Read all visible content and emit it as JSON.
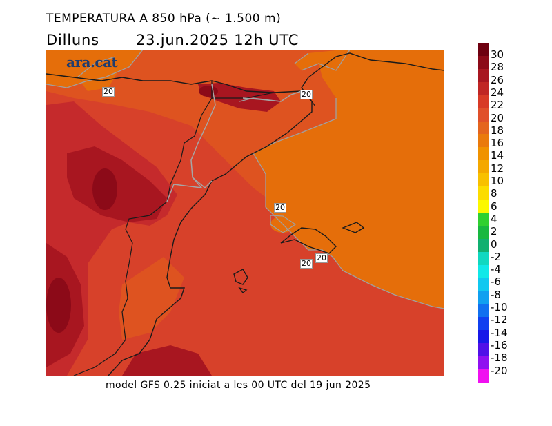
{
  "header": {
    "title": "TEMPERATURA A 850 hPa (~ 1.500 m)",
    "day": "Dilluns",
    "datetime": "23.jun.2025  12h  UTC"
  },
  "footer": {
    "model_note": "model GFS 0.25 iniciat a les 00 UTC del 19 jun 2025"
  },
  "logo": {
    "text": "ara.cat"
  },
  "contour_labels": [
    "20",
    "20",
    "20",
    "20",
    "20"
  ],
  "colorbar": {
    "ticks": [
      "30",
      "28",
      "26",
      "24",
      "22",
      "20",
      "18",
      "16",
      "14",
      "12",
      "10",
      "8",
      "6",
      "4",
      "2",
      "0",
      "-2",
      "-4",
      "-6",
      "-8",
      "-10",
      "-12",
      "-14",
      "-16",
      "-18",
      "-20"
    ],
    "colors": [
      "#6e0010",
      "#8c0a18",
      "#a81620",
      "#c02624",
      "#d83a26",
      "#e0502a",
      "#e4651e",
      "#ea7a0c",
      "#f09200",
      "#f4a800",
      "#f8c000",
      "#fcdc00",
      "#fcf800",
      "#30d030",
      "#18b840",
      "#10b070",
      "#10d8c0",
      "#10e8e8",
      "#10c8f0",
      "#10a0f0",
      "#1070f0",
      "#1040f0",
      "#1818e8",
      "#5010e8",
      "#9010f0",
      "#f010f0"
    ]
  },
  "field_colors": {
    "t16_18": "#e56e0a",
    "t18_20": "#de5320",
    "t20_22": "#d7412a",
    "t22_24": "#c52a2c",
    "t24_26": "#a81620"
  }
}
